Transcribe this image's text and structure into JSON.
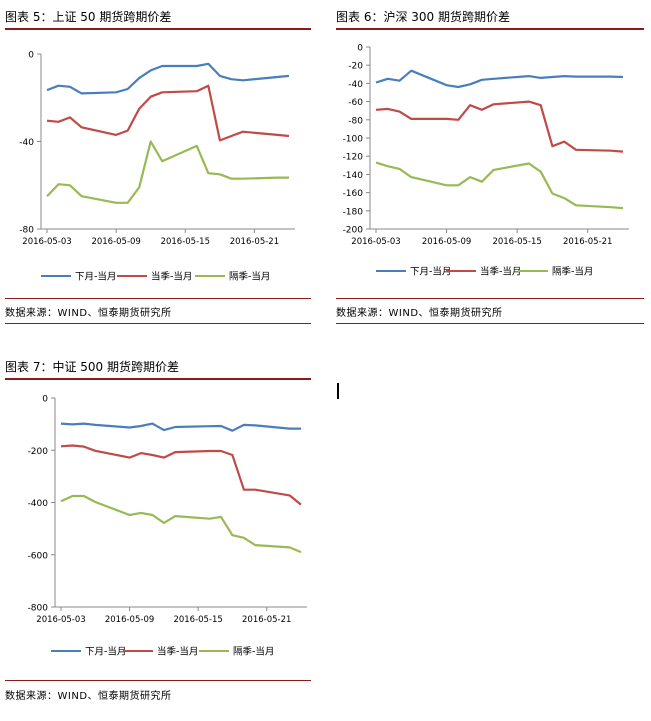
{
  "source_note": "数据来源：WIND、恒泰期货研究所",
  "charts": {
    "c5": {
      "title": "图表 5：上证 50 期货跨期价差"
    },
    "c6": {
      "title": "图表 6：沪深 300 期货跨期价差"
    },
    "c7": {
      "title": "图表 7：中证 500 期货跨期价差"
    }
  },
  "colors": {
    "near": "#4a7ebb",
    "quarter": "#be4b48",
    "far": "#98b954",
    "rule": "#8b1a1a"
  },
  "chart_data": [
    {
      "id": "c5",
      "type": "line",
      "title": "图表 5：上证 50 期货跨期价差",
      "x": [
        "2016-05-03",
        "2016-05-04",
        "2016-05-05",
        "2016-05-06",
        "2016-05-09",
        "2016-05-10",
        "2016-05-11",
        "2016-05-12",
        "2016-05-13",
        "2016-05-16",
        "2016-05-17",
        "2016-05-18",
        "2016-05-19",
        "2016-05-20",
        "2016-05-23",
        "2016-05-24"
      ],
      "x_ticks": [
        "2016-05-03",
        "2016-05-09",
        "2016-05-15",
        "2016-05-21"
      ],
      "ylim": [
        -80,
        0
      ],
      "y_ticks": [
        0,
        -40,
        -80
      ],
      "grid": false,
      "legend_position": "bottom",
      "series": [
        {
          "name": "下月-当月",
          "color": "#4a7ebb",
          "points": [
            [
              "2016-05-03",
              -16.5
            ],
            [
              "2016-05-04",
              -14.5
            ],
            [
              "2016-05-05",
              -15
            ],
            [
              "2016-05-06",
              -18
            ],
            [
              "2016-05-09",
              -17.5
            ],
            [
              "2016-05-10",
              -16
            ],
            [
              "2016-05-11",
              -11
            ],
            [
              "2016-05-12",
              -7.5
            ],
            [
              "2016-05-13",
              -5.5
            ],
            [
              "2016-05-16",
              -5.5
            ],
            [
              "2016-05-17",
              -4.5
            ],
            [
              "2016-05-18",
              -10
            ],
            [
              "2016-05-19",
              -11.5
            ],
            [
              "2016-05-20",
              -12
            ],
            [
              "2016-05-23",
              -10.5
            ],
            [
              "2016-05-24",
              -10
            ]
          ]
        },
        {
          "name": "当季-当月",
          "color": "#be4b48",
          "points": [
            [
              "2016-05-03",
              -30.5
            ],
            [
              "2016-05-04",
              -31
            ],
            [
              "2016-05-05",
              -29
            ],
            [
              "2016-05-06",
              -33.5
            ],
            [
              "2016-05-09",
              -37
            ],
            [
              "2016-05-10",
              -35
            ],
            [
              "2016-05-11",
              -25
            ],
            [
              "2016-05-12",
              -19.5
            ],
            [
              "2016-05-13",
              -17.5
            ],
            [
              "2016-05-16",
              -17
            ],
            [
              "2016-05-17",
              -14.5
            ],
            [
              "2016-05-18",
              -39.5
            ],
            [
              "2016-05-19",
              -37.5
            ],
            [
              "2016-05-20",
              -35.5
            ],
            [
              "2016-05-23",
              -37
            ],
            [
              "2016-05-24",
              -37.5
            ]
          ]
        },
        {
          "name": "隔季-当月",
          "color": "#98b954",
          "points": [
            [
              "2016-05-03",
              -65
            ],
            [
              "2016-05-04",
              -59.5
            ],
            [
              "2016-05-05",
              -60
            ],
            [
              "2016-05-06",
              -65
            ],
            [
              "2016-05-09",
              -68
            ],
            [
              "2016-05-10",
              -68
            ],
            [
              "2016-05-11",
              -61
            ],
            [
              "2016-05-12",
              -40
            ],
            [
              "2016-05-13",
              -49
            ],
            [
              "2016-05-16",
              -42
            ],
            [
              "2016-05-17",
              -54.5
            ],
            [
              "2016-05-18",
              -55
            ],
            [
              "2016-05-19",
              -57
            ],
            [
              "2016-05-20",
              -57
            ],
            [
              "2016-05-23",
              -56.5
            ],
            [
              "2016-05-24",
              -56.5
            ]
          ]
        }
      ]
    },
    {
      "id": "c6",
      "type": "line",
      "title": "图表 6：沪深 300 期货跨期价差",
      "x": [
        "2016-05-03",
        "2016-05-04",
        "2016-05-05",
        "2016-05-06",
        "2016-05-09",
        "2016-05-10",
        "2016-05-11",
        "2016-05-12",
        "2016-05-13",
        "2016-05-16",
        "2016-05-17",
        "2016-05-18",
        "2016-05-19",
        "2016-05-20",
        "2016-05-23",
        "2016-05-24"
      ],
      "x_ticks": [
        "2016-05-03",
        "2016-05-09",
        "2016-05-15",
        "2016-05-21"
      ],
      "ylim": [
        -200,
        0
      ],
      "y_ticks": [
        0,
        -20,
        -40,
        -60,
        -80,
        -100,
        -120,
        -140,
        -160,
        -180,
        -200
      ],
      "grid": false,
      "legend_position": "bottom",
      "series": [
        {
          "name": "下月-当月",
          "color": "#4a7ebb",
          "points": [
            [
              "2016-05-03",
              -39
            ],
            [
              "2016-05-04",
              -35
            ],
            [
              "2016-05-05",
              -37
            ],
            [
              "2016-05-06",
              -26
            ],
            [
              "2016-05-09",
              -42
            ],
            [
              "2016-05-10",
              -44
            ],
            [
              "2016-05-11",
              -41
            ],
            [
              "2016-05-12",
              -36
            ],
            [
              "2016-05-13",
              -35
            ],
            [
              "2016-05-16",
              -32
            ],
            [
              "2016-05-17",
              -34
            ],
            [
              "2016-05-18",
              -33
            ],
            [
              "2016-05-19",
              -32
            ],
            [
              "2016-05-20",
              -32.5
            ],
            [
              "2016-05-23",
              -32.5
            ],
            [
              "2016-05-24",
              -33
            ]
          ]
        },
        {
          "name": "当季-当月",
          "color": "#be4b48",
          "points": [
            [
              "2016-05-03",
              -69
            ],
            [
              "2016-05-04",
              -68
            ],
            [
              "2016-05-05",
              -71
            ],
            [
              "2016-05-06",
              -79
            ],
            [
              "2016-05-09",
              -79
            ],
            [
              "2016-05-10",
              -80
            ],
            [
              "2016-05-11",
              -64
            ],
            [
              "2016-05-12",
              -69
            ],
            [
              "2016-05-13",
              -63
            ],
            [
              "2016-05-16",
              -60
            ],
            [
              "2016-05-17",
              -64
            ],
            [
              "2016-05-18",
              -109
            ],
            [
              "2016-05-19",
              -104
            ],
            [
              "2016-05-20",
              -113
            ],
            [
              "2016-05-23",
              -114
            ],
            [
              "2016-05-24",
              -115
            ]
          ]
        },
        {
          "name": "隔季-当月",
          "color": "#98b954",
          "points": [
            [
              "2016-05-03",
              -127
            ],
            [
              "2016-05-04",
              -131
            ],
            [
              "2016-05-05",
              -134
            ],
            [
              "2016-05-06",
              -143
            ],
            [
              "2016-05-09",
              -152
            ],
            [
              "2016-05-10",
              -152
            ],
            [
              "2016-05-11",
              -143
            ],
            [
              "2016-05-12",
              -148
            ],
            [
              "2016-05-13",
              -135
            ],
            [
              "2016-05-16",
              -128
            ],
            [
              "2016-05-17",
              -137
            ],
            [
              "2016-05-18",
              -161
            ],
            [
              "2016-05-19",
              -166
            ],
            [
              "2016-05-20",
              -174
            ],
            [
              "2016-05-23",
              -176
            ],
            [
              "2016-05-24",
              -177
            ]
          ]
        }
      ]
    },
    {
      "id": "c7",
      "type": "line",
      "title": "图表 7：中证 500 期货跨期价差",
      "x": [
        "2016-05-03",
        "2016-05-04",
        "2016-05-05",
        "2016-05-06",
        "2016-05-09",
        "2016-05-10",
        "2016-05-11",
        "2016-05-12",
        "2016-05-13",
        "2016-05-16",
        "2016-05-17",
        "2016-05-18",
        "2016-05-19",
        "2016-05-20",
        "2016-05-23",
        "2016-05-24"
      ],
      "x_ticks": [
        "2016-05-03",
        "2016-05-09",
        "2016-05-15",
        "2016-05-21"
      ],
      "ylim": [
        -800,
        0
      ],
      "y_ticks": [
        0,
        -200,
        -400,
        -600,
        -800
      ],
      "grid": false,
      "legend_position": "bottom",
      "series": [
        {
          "name": "下月-当月",
          "color": "#4a7ebb",
          "points": [
            [
              "2016-05-03",
              -98
            ],
            [
              "2016-05-04",
              -101
            ],
            [
              "2016-05-05",
              -98
            ],
            [
              "2016-05-06",
              -103
            ],
            [
              "2016-05-09",
              -113
            ],
            [
              "2016-05-10",
              -107
            ],
            [
              "2016-05-11",
              -98
            ],
            [
              "2016-05-12",
              -123
            ],
            [
              "2016-05-13",
              -111
            ],
            [
              "2016-05-16",
              -108
            ],
            [
              "2016-05-17",
              -107
            ],
            [
              "2016-05-18",
              -125
            ],
            [
              "2016-05-19",
              -103
            ],
            [
              "2016-05-20",
              -105
            ],
            [
              "2016-05-23",
              -117
            ],
            [
              "2016-05-24",
              -117
            ]
          ]
        },
        {
          "name": "当季-当月",
          "color": "#be4b48",
          "points": [
            [
              "2016-05-03",
              -185
            ],
            [
              "2016-05-04",
              -182
            ],
            [
              "2016-05-05",
              -186
            ],
            [
              "2016-05-06",
              -202
            ],
            [
              "2016-05-09",
              -228
            ],
            [
              "2016-05-10",
              -211
            ],
            [
              "2016-05-11",
              -218
            ],
            [
              "2016-05-12",
              -228
            ],
            [
              "2016-05-13",
              -207
            ],
            [
              "2016-05-16",
              -203
            ],
            [
              "2016-05-17",
              -203
            ],
            [
              "2016-05-18",
              -218
            ],
            [
              "2016-05-19",
              -351
            ],
            [
              "2016-05-20",
              -351
            ],
            [
              "2016-05-23",
              -373
            ],
            [
              "2016-05-24",
              -408
            ]
          ]
        },
        {
          "name": "隔季-当月",
          "color": "#98b954",
          "points": [
            [
              "2016-05-03",
              -395
            ],
            [
              "2016-05-04",
              -375
            ],
            [
              "2016-05-05",
              -375
            ],
            [
              "2016-05-06",
              -398
            ],
            [
              "2016-05-09",
              -448
            ],
            [
              "2016-05-10",
              -440
            ],
            [
              "2016-05-11",
              -448
            ],
            [
              "2016-05-12",
              -478
            ],
            [
              "2016-05-13",
              -452
            ],
            [
              "2016-05-16",
              -462
            ],
            [
              "2016-05-17",
              -455
            ],
            [
              "2016-05-18",
              -525
            ],
            [
              "2016-05-19",
              -535
            ],
            [
              "2016-05-20",
              -563
            ],
            [
              "2016-05-23",
              -572
            ],
            [
              "2016-05-24",
              -590
            ]
          ]
        }
      ]
    }
  ]
}
